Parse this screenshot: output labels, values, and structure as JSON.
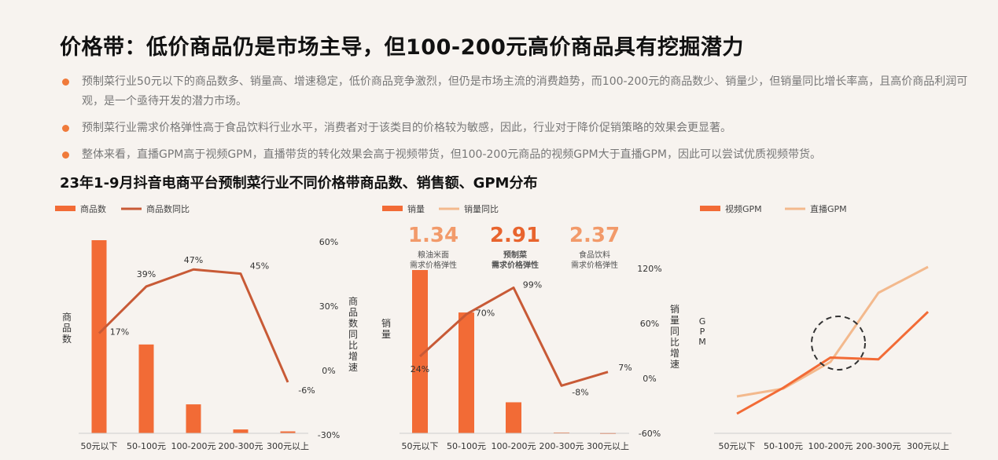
{
  "header": {
    "title": "价格带：低价商品仍是市场主导，但100-200元高价商品具有挖掘潜力",
    "bullets": [
      "预制菜行业50元以下的商品数多、销量高、增速稳定，低价商品竞争激烈，但仍是市场主流的消费趋势，而100-200元的商品数少、销量少，但销量同比增长率高，且高价商品利润可观，是一个亟待开发的潜力市场。",
      "预制菜行业需求价格弹性高于食品饮料行业水平，消费者对于该类目的价格较为敏感，因此，行业对于降价促销策略的效果会更显著。",
      "整体来看，直播GPM高于视频GPM，直播带货的转化效果会高于视频带货，但100-200元商品的视频GPM大于直播GPM，因此可以尝试优质视频带货。"
    ],
    "subtitle": "23年1-9月抖音电商平台预制菜行业不同价格带商品数、销售额、GPM分布"
  },
  "colors": {
    "bar": "#f26b36",
    "line": "#c85a36",
    "line_light": "#f3b98d",
    "circle": "#333333"
  },
  "chart_data": [
    {
      "type": "bar",
      "categories": [
        "50元以下",
        "50-100元",
        "100-200元",
        "200-300元",
        "300元以上"
      ],
      "legend": [
        "商品数",
        "商品数同比"
      ],
      "ylabel": "商品数",
      "y2label": "商品数同比增速",
      "values": [
        100,
        46,
        15,
        2,
        1
      ],
      "growth": [
        17,
        39,
        47,
        45,
        -6
      ],
      "growth_labels": [
        "17%",
        "39%",
        "47%",
        "45%",
        "-6%"
      ],
      "y2ticks": [
        "60%",
        "30%",
        "0%",
        "-30%"
      ],
      "y2lim": [
        -30,
        60
      ]
    },
    {
      "type": "bar",
      "categories": [
        "50元以下",
        "50-100元",
        "100-200元",
        "200-300元",
        "300元以上"
      ],
      "legend": [
        "销量",
        "销量同比"
      ],
      "ylabel": "销量",
      "y2label": "销量同比增速",
      "values": [
        100,
        74,
        19,
        0.5,
        0.3
      ],
      "growth": [
        24,
        70,
        99,
        -8,
        7
      ],
      "growth_labels": [
        "24%",
        "70%",
        "99%",
        "-8%",
        "7%"
      ],
      "y2ticks": [
        "120%",
        "60%",
        "0%",
        "-60%"
      ],
      "y2lim": [
        -60,
        120
      ],
      "elasticity": [
        {
          "value": "1.34",
          "label1": "粮油米面",
          "label2": "需求价格弹性"
        },
        {
          "value": "2.91",
          "label1": "预制菜",
          "label2": "需求价格弹性"
        },
        {
          "value": "2.37",
          "label1": "食品饮料",
          "label2": "需求价格弹性"
        }
      ]
    },
    {
      "type": "line",
      "categories": [
        "50元以下",
        "50-100元",
        "100-200元",
        "200-300元",
        "300元以上"
      ],
      "legend": [
        "视频GPM",
        "直播GPM"
      ],
      "ylabel": "GPM",
      "series": [
        {
          "name": "视频GPM",
          "values": [
            10,
            40,
            75,
            73,
            128
          ]
        },
        {
          "name": "直播GPM",
          "values": [
            30,
            39,
            70,
            150,
            180
          ]
        }
      ]
    }
  ]
}
